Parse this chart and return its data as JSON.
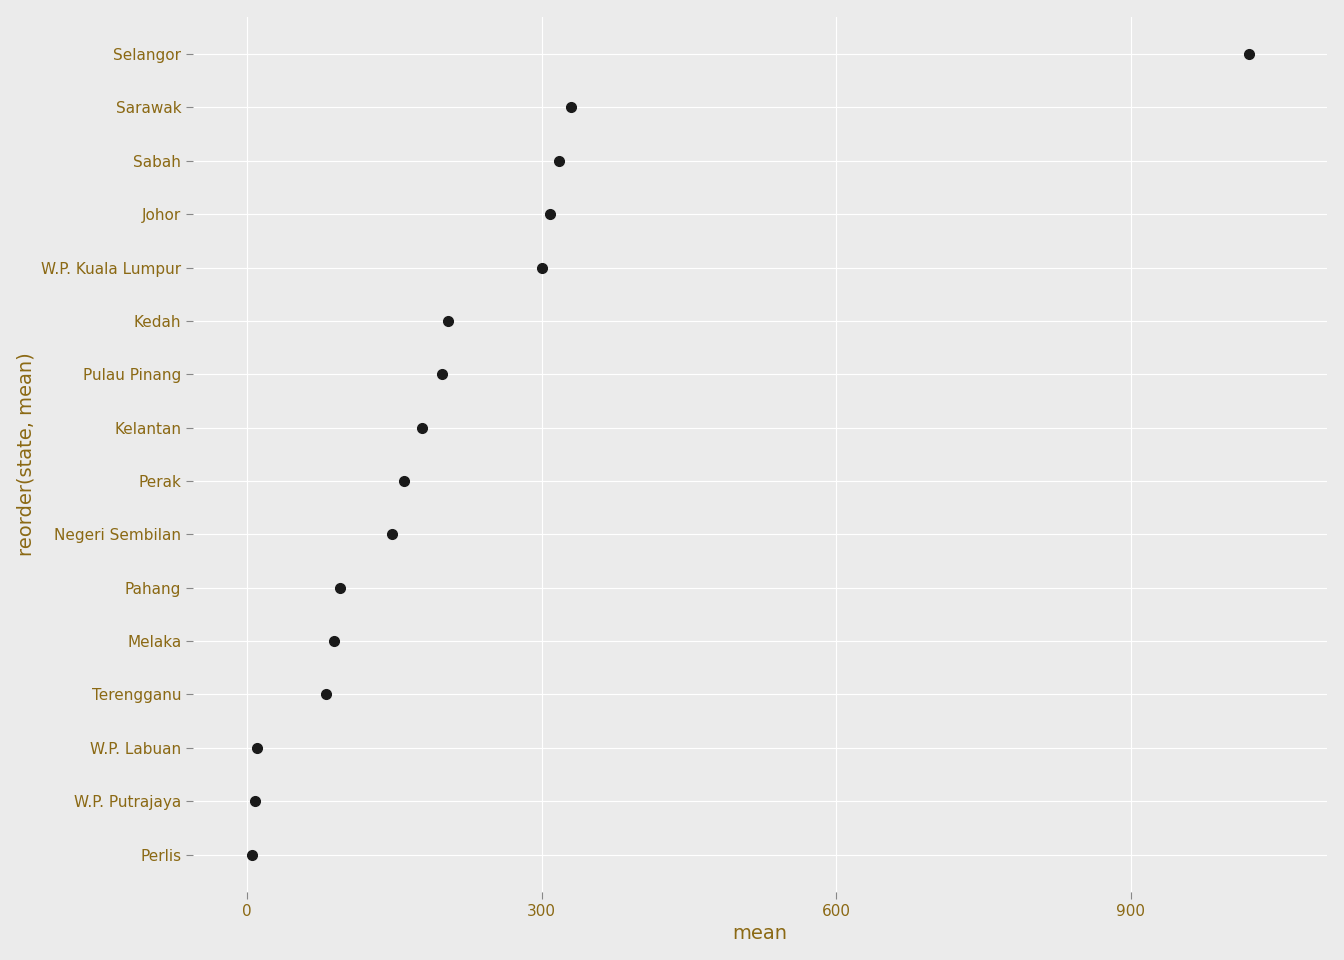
{
  "states": [
    "Perlis",
    "W.P. Putrajaya",
    "W.P. Labuan",
    "Terengganu",
    "Melaka",
    "Pahang",
    "Negeri Sembilan",
    "Perak",
    "Kelantan",
    "Pulau Pinang",
    "Kedah",
    "W.P. Kuala Lumpur",
    "Johor",
    "Sabah",
    "Sarawak",
    "Selangor"
  ],
  "values": [
    5,
    8,
    10,
    80,
    88,
    95,
    148,
    160,
    178,
    198,
    205,
    300,
    308,
    318,
    330,
    1020
  ],
  "xlabel": "mean",
  "ylabel": "reorder(state, mean)",
  "dot_color": "#1a1a1a",
  "dot_size": 7,
  "background_color": "#EBEBEB",
  "grid_color": "#ffffff",
  "x_ticks": [
    0,
    300,
    600,
    900
  ],
  "label_fontsize": 14,
  "tick_label_fontsize": 11,
  "tick_label_color": "#8B6914"
}
